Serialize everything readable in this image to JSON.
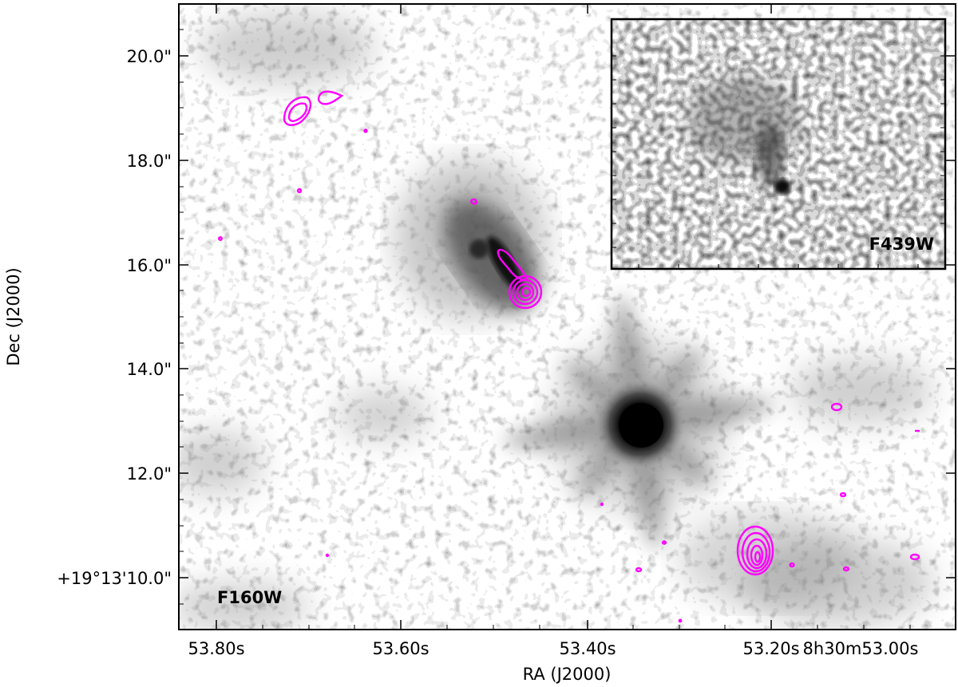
{
  "figure": {
    "xlabel": "RA (J2000)",
    "ylabel": "Dec (J2000)",
    "x_ticks": [
      "53.80s",
      "53.60s",
      "53.40s",
      "53.20s",
      "8h30m53.00s"
    ],
    "y_ticks": [
      "20.0\"",
      "18.0\"",
      "16.0\"",
      "14.0\"",
      "12.0\"",
      "+19°13'10.0\""
    ],
    "main_band": "F160W",
    "inset_band": "F439W",
    "contour_color": "#ff00ff",
    "grayscale": "inverted (dark = bright emission)"
  }
}
